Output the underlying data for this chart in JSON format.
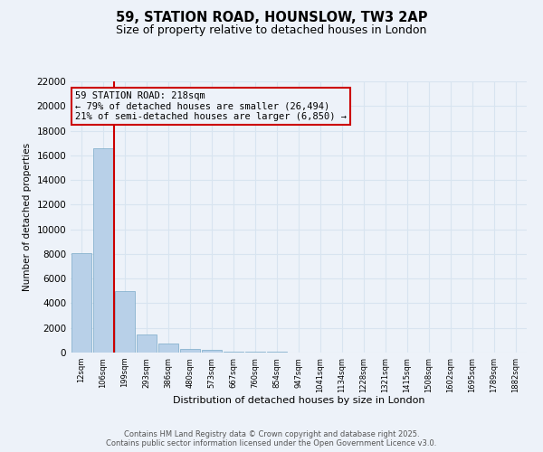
{
  "title": "59, STATION ROAD, HOUNSLOW, TW3 2AP",
  "subtitle": "Size of property relative to detached houses in London",
  "xlabel": "Distribution of detached houses by size in London",
  "ylabel": "Number of detached properties",
  "bar_labels": [
    "12sqm",
    "106sqm",
    "199sqm",
    "293sqm",
    "386sqm",
    "480sqm",
    "573sqm",
    "667sqm",
    "760sqm",
    "854sqm",
    "947sqm",
    "1041sqm",
    "1134sqm",
    "1228sqm",
    "1321sqm",
    "1415sqm",
    "1508sqm",
    "1602sqm",
    "1695sqm",
    "1789sqm",
    "1882sqm"
  ],
  "bar_values": [
    8100,
    16600,
    5000,
    1500,
    700,
    300,
    200,
    100,
    60,
    50,
    10,
    5,
    3,
    2,
    1,
    1,
    1,
    0,
    0,
    0,
    0
  ],
  "bar_color": "#b8d0e8",
  "bar_edge_color": "#7aaac8",
  "vline_color": "#cc0000",
  "vline_x_index": 1.5,
  "annotation_text": "59 STATION ROAD: 218sqm\n← 79% of detached houses are smaller (26,494)\n21% of semi-detached houses are larger (6,850) →",
  "annotation_box_edgecolor": "#cc0000",
  "ylim_max": 22000,
  "yticks": [
    0,
    2000,
    4000,
    6000,
    8000,
    10000,
    12000,
    14000,
    16000,
    18000,
    20000,
    22000
  ],
  "background_color": "#edf2f9",
  "grid_color": "#d8e4f0",
  "footer_text": "Contains HM Land Registry data © Crown copyright and database right 2025.\nContains public sector information licensed under the Open Government Licence v3.0.",
  "title_fontsize": 10.5,
  "subtitle_fontsize": 9,
  "xlabel_fontsize": 8,
  "ylabel_fontsize": 7.5,
  "xtick_fontsize": 6,
  "ytick_fontsize": 7.5,
  "annotation_fontsize": 7.5,
  "footer_fontsize": 6
}
